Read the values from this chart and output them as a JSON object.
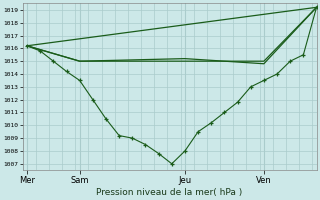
{
  "background_color": "#cce8e8",
  "grid_color": "#aacccc",
  "line_color": "#1a5c1a",
  "title": "Pression niveau de la mer( hPa )",
  "ylim": [
    1006.5,
    1019.5
  ],
  "yticks": [
    1007,
    1008,
    1009,
    1010,
    1011,
    1012,
    1013,
    1014,
    1015,
    1016,
    1017,
    1018,
    1019
  ],
  "day_labels": [
    "Mer",
    "Sam",
    "Jeu",
    "Ven"
  ],
  "day_positions": [
    0,
    24,
    72,
    108
  ],
  "xlim": [
    -2,
    132
  ],
  "series_marker": {
    "x": [
      0,
      6,
      12,
      18,
      24,
      30,
      36,
      42,
      48,
      54,
      60,
      66,
      72,
      78,
      84,
      90,
      96,
      102,
      108,
      114,
      120,
      126,
      132
    ],
    "y": [
      1016.2,
      1015.8,
      1015.0,
      1014.2,
      1013.5,
      1012.0,
      1010.5,
      1009.2,
      1009.0,
      1008.5,
      1007.8,
      1007.0,
      1008.0,
      1009.5,
      1010.2,
      1011.0,
      1011.8,
      1013.0,
      1013.5,
      1014.0,
      1015.0,
      1015.5,
      1019.2
    ]
  },
  "series_line1": {
    "x": [
      0,
      132
    ],
    "y": [
      1016.2,
      1019.2
    ]
  },
  "series_line2": {
    "x": [
      0,
      24,
      72,
      108,
      132
    ],
    "y": [
      1016.2,
      1015.0,
      1015.2,
      1014.8,
      1019.2
    ]
  },
  "series_line3": {
    "x": [
      0,
      24,
      72,
      108,
      132
    ],
    "y": [
      1016.2,
      1015.0,
      1015.0,
      1015.0,
      1019.2
    ]
  }
}
